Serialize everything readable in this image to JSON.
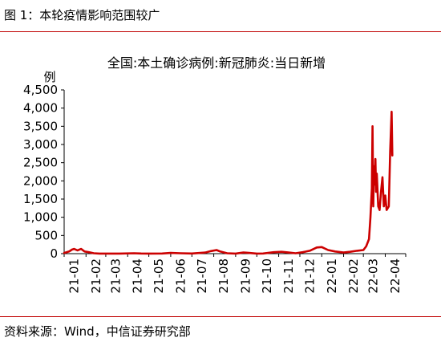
{
  "figure": {
    "title": "图 1：本轮疫情影响范围较广",
    "source": "资料来源：Wind，中信证券研究部"
  },
  "colors": {
    "line": "#cc0000",
    "rule": "#c00000",
    "axis": "#000000"
  },
  "chart_data": {
    "type": "line",
    "title": "全国:本土确诊病例:新冠肺炎:当日新增",
    "xlabel": "",
    "ylabel": "例",
    "ylim": [
      0,
      4500
    ],
    "yticks": [
      0,
      500,
      1000,
      1500,
      2000,
      2500,
      3000,
      3500,
      4000,
      4500
    ],
    "ytick_labels": [
      "0",
      "500",
      "1,000",
      "1,500",
      "2,000",
      "2,500",
      "3,000",
      "3,500",
      "4,000",
      "4,500"
    ],
    "categories": [
      "21-01",
      "21-02",
      "21-03",
      "21-04",
      "21-05",
      "21-06",
      "21-07",
      "21-08",
      "21-09",
      "21-10",
      "21-11",
      "21-12",
      "22-01",
      "22-02",
      "22-03",
      "22-04"
    ],
    "xlim": [
      "2021-01-01",
      "2022-04-30"
    ],
    "grid": false,
    "legend": "none",
    "series": [
      {
        "values": [
          [
            "2021-01-01",
            20
          ],
          [
            "2021-01-08",
            60
          ],
          [
            "2021-01-12",
            110
          ],
          [
            "2021-01-15",
            130
          ],
          [
            "2021-01-20",
            90
          ],
          [
            "2021-01-25",
            130
          ],
          [
            "2021-01-30",
            60
          ],
          [
            "2021-02-05",
            40
          ],
          [
            "2021-02-12",
            10
          ],
          [
            "2021-02-20",
            2
          ],
          [
            "2021-03-01",
            2
          ],
          [
            "2021-03-20",
            2
          ],
          [
            "2021-04-10",
            10
          ],
          [
            "2021-04-20",
            5
          ],
          [
            "2021-05-01",
            2
          ],
          [
            "2021-05-20",
            5
          ],
          [
            "2021-06-01",
            20
          ],
          [
            "2021-06-15",
            10
          ],
          [
            "2021-07-01",
            5
          ],
          [
            "2021-07-20",
            30
          ],
          [
            "2021-07-28",
            70
          ],
          [
            "2021-08-05",
            100
          ],
          [
            "2021-08-10",
            60
          ],
          [
            "2021-08-20",
            10
          ],
          [
            "2021-09-01",
            2
          ],
          [
            "2021-09-12",
            30
          ],
          [
            "2021-09-20",
            20
          ],
          [
            "2021-10-01",
            2
          ],
          [
            "2021-10-10",
            5
          ],
          [
            "2021-10-25",
            40
          ],
          [
            "2021-11-05",
            50
          ],
          [
            "2021-11-15",
            30
          ],
          [
            "2021-11-25",
            10
          ],
          [
            "2021-12-05",
            40
          ],
          [
            "2021-12-15",
            80
          ],
          [
            "2021-12-25",
            170
          ],
          [
            "2022-01-01",
            180
          ],
          [
            "2022-01-10",
            100
          ],
          [
            "2022-01-20",
            60
          ],
          [
            "2022-02-01",
            30
          ],
          [
            "2022-02-10",
            50
          ],
          [
            "2022-02-20",
            80
          ],
          [
            "2022-03-01",
            100
          ],
          [
            "2022-03-05",
            200
          ],
          [
            "2022-03-09",
            400
          ],
          [
            "2022-03-11",
            1000
          ],
          [
            "2022-03-13",
            1800
          ],
          [
            "2022-03-14",
            3500
          ],
          [
            "2022-03-15",
            1300
          ],
          [
            "2022-03-16",
            2400
          ],
          [
            "2022-03-17",
            1900
          ],
          [
            "2022-03-18",
            2600
          ],
          [
            "2022-03-19",
            1700
          ],
          [
            "2022-03-20",
            2200
          ],
          [
            "2022-03-22",
            1300
          ],
          [
            "2022-03-24",
            1200
          ],
          [
            "2022-03-26",
            1700
          ],
          [
            "2022-03-28",
            2100
          ],
          [
            "2022-03-30",
            1300
          ],
          [
            "2022-04-01",
            1600
          ],
          [
            "2022-04-03",
            1200
          ],
          [
            "2022-04-06",
            1300
          ],
          [
            "2022-04-08",
            2800
          ],
          [
            "2022-04-10",
            3900
          ],
          [
            "2022-04-11",
            2700
          ]
        ]
      }
    ]
  }
}
